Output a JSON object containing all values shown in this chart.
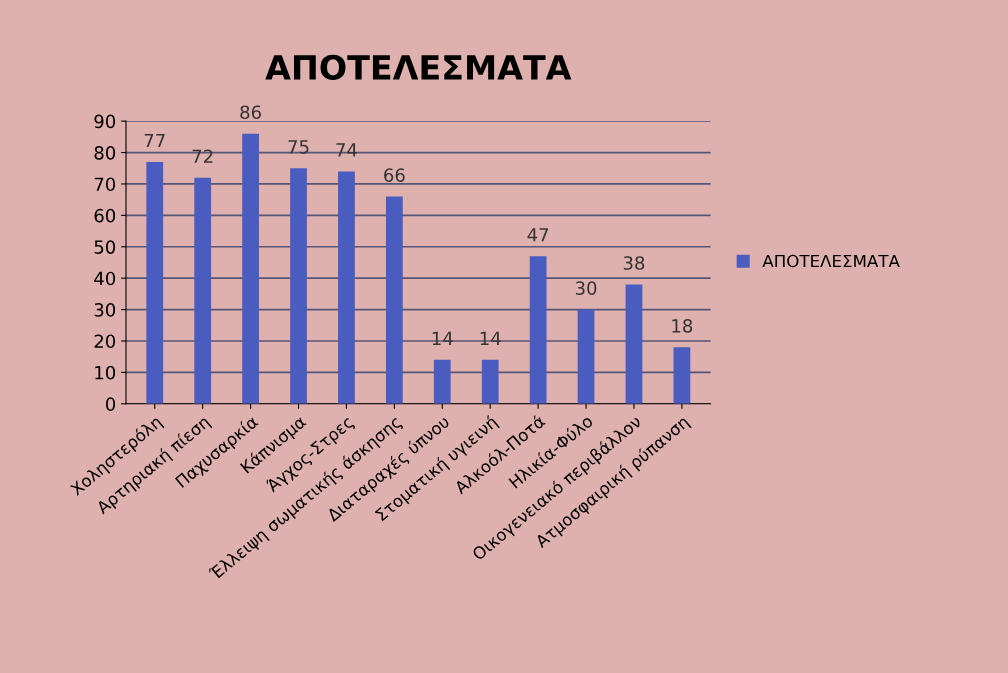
{
  "chart_data": {
    "type": "bar",
    "title": "ΑΠΟΤΕΛΕΣΜΑΤΑ",
    "categories": [
      "Χοληστερόλη",
      "Αρτηριακή πίεση",
      "Παχυσαρκία",
      "Κάπνισμα",
      "Άγχος-Στρες",
      "Έλλειψη σωματικής άσκησης",
      "Διαταραχές ύπνου",
      "Στοματική υγιεινή",
      "Αλκοόλ-Ποτά",
      "Ηλικία-Φύλο",
      "Οικογενειακό περιβάλλον",
      "Ατμοσφαιρική ρύπανση"
    ],
    "series": [
      {
        "name": "ΑΠΟΤΕΛΕΣΜΑΤΑ",
        "color": "#4a5cc0",
        "values": [
          77,
          72,
          86,
          75,
          74,
          66,
          14,
          14,
          47,
          30,
          38,
          18
        ]
      }
    ],
    "ylim": [
      0,
      90
    ],
    "yticks": [
      0,
      10,
      20,
      30,
      40,
      50,
      60,
      70,
      80,
      90
    ],
    "grid": "y",
    "legend": "right",
    "data_labels": true
  }
}
